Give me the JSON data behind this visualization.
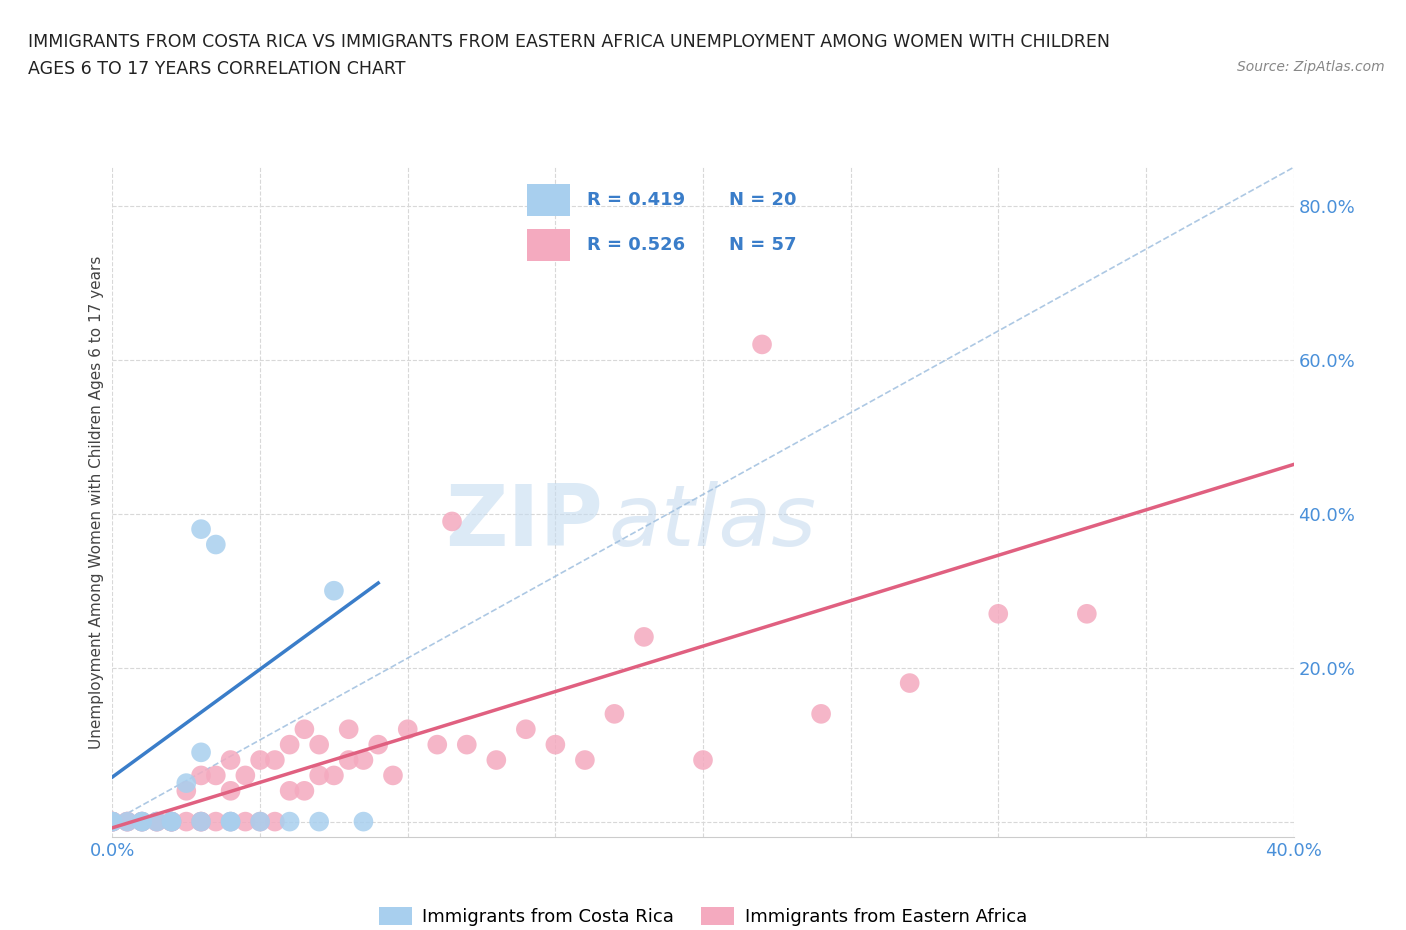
{
  "title_line1": "IMMIGRANTS FROM COSTA RICA VS IMMIGRANTS FROM EASTERN AFRICA UNEMPLOYMENT AMONG WOMEN WITH CHILDREN",
  "title_line2": "AGES 6 TO 17 YEARS CORRELATION CHART",
  "source": "Source: ZipAtlas.com",
  "ylabel": "Unemployment Among Women with Children Ages 6 to 17 years",
  "xlim": [
    0.0,
    0.4
  ],
  "ylim": [
    -0.02,
    0.85
  ],
  "xticks": [
    0.0,
    0.05,
    0.1,
    0.15,
    0.2,
    0.25,
    0.3,
    0.35,
    0.4
  ],
  "yticks": [
    0.0,
    0.2,
    0.4,
    0.6,
    0.8
  ],
  "xticklabels": [
    "0.0%",
    "",
    "",
    "",
    "",
    "",
    "",
    "",
    "40.0%"
  ],
  "yticklabels_right": [
    "",
    "20.0%",
    "40.0%",
    "60.0%",
    "80.0%"
  ],
  "blue_R": 0.419,
  "blue_N": 20,
  "pink_R": 0.526,
  "pink_N": 57,
  "blue_color": "#A8CFEE",
  "pink_color": "#F4AABF",
  "blue_line_color": "#3A7DC9",
  "pink_line_color": "#E06080",
  "legend_label_blue": "Immigrants from Costa Rica",
  "legend_label_pink": "Immigrants from Eastern Africa",
  "watermark_zip": "ZIP",
  "watermark_atlas": "atlas",
  "background_color": "#ffffff",
  "grid_color": "#d8d8d8",
  "blue_scatter_x": [
    0.0,
    0.0,
    0.005,
    0.01,
    0.01,
    0.015,
    0.02,
    0.02,
    0.025,
    0.03,
    0.03,
    0.03,
    0.035,
    0.04,
    0.04,
    0.05,
    0.06,
    0.07,
    0.075,
    0.085
  ],
  "blue_scatter_y": [
    0.0,
    0.0,
    0.0,
    0.0,
    0.0,
    0.0,
    0.0,
    0.0,
    0.05,
    0.0,
    0.09,
    0.38,
    0.36,
    0.0,
    0.0,
    0.0,
    0.0,
    0.0,
    0.3,
    0.0
  ],
  "pink_scatter_x": [
    0.0,
    0.0,
    0.0,
    0.0,
    0.005,
    0.005,
    0.01,
    0.01,
    0.015,
    0.015,
    0.02,
    0.02,
    0.02,
    0.025,
    0.025,
    0.03,
    0.03,
    0.03,
    0.035,
    0.035,
    0.04,
    0.04,
    0.04,
    0.045,
    0.045,
    0.05,
    0.05,
    0.055,
    0.055,
    0.06,
    0.06,
    0.065,
    0.065,
    0.07,
    0.07,
    0.075,
    0.08,
    0.08,
    0.085,
    0.09,
    0.095,
    0.1,
    0.11,
    0.115,
    0.12,
    0.13,
    0.14,
    0.15,
    0.16,
    0.17,
    0.18,
    0.2,
    0.22,
    0.24,
    0.27,
    0.3,
    0.33
  ],
  "pink_scatter_y": [
    0.0,
    0.0,
    0.0,
    0.0,
    0.0,
    0.0,
    0.0,
    0.0,
    0.0,
    0.0,
    0.0,
    0.0,
    0.0,
    0.0,
    0.04,
    0.0,
    0.0,
    0.06,
    0.0,
    0.06,
    0.0,
    0.04,
    0.08,
    0.0,
    0.06,
    0.0,
    0.08,
    0.0,
    0.08,
    0.04,
    0.1,
    0.04,
    0.12,
    0.06,
    0.1,
    0.06,
    0.08,
    0.12,
    0.08,
    0.1,
    0.06,
    0.12,
    0.1,
    0.39,
    0.1,
    0.08,
    0.12,
    0.1,
    0.08,
    0.14,
    0.24,
    0.08,
    0.62,
    0.14,
    0.18,
    0.27,
    0.27
  ],
  "blue_trend_x": [
    0.0,
    0.09
  ],
  "blue_trend_y_intercept": 0.058,
  "blue_trend_slope": 2.8,
  "pink_trend_x": [
    0.0,
    0.4
  ],
  "pink_trend_y_intercept": -0.008,
  "pink_trend_slope": 1.18
}
